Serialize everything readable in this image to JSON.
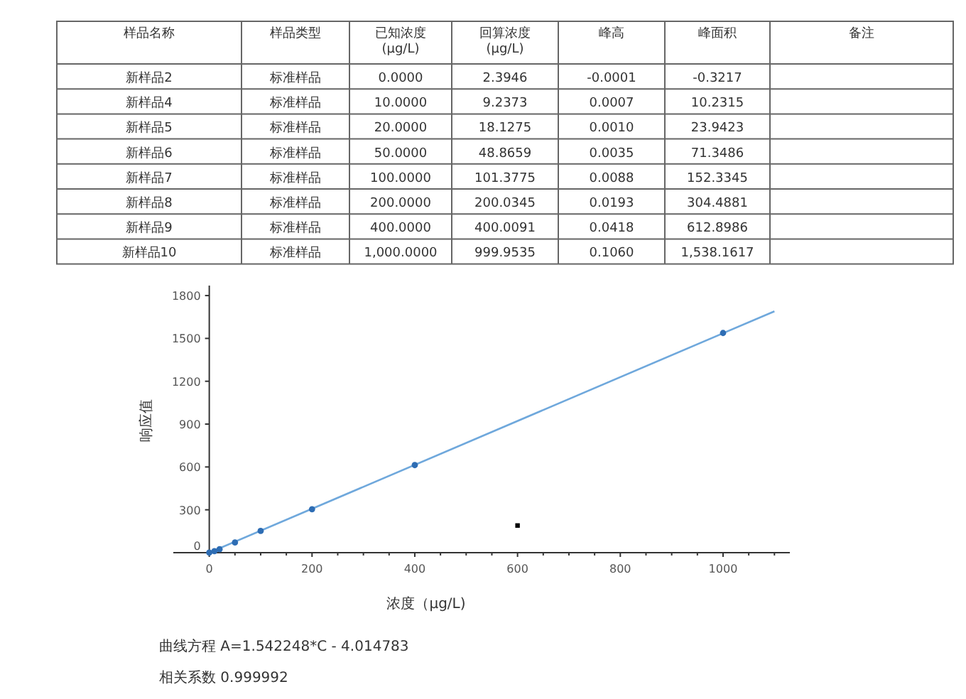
{
  "chart_data": [
    {
      "type": "other",
      "categories": [
        "样品名称",
        "样品类型",
        "已知浓度\n(μg/L)",
        "回算浓度\n(μg/L)",
        "峰高",
        "峰面积",
        "备注"
      ],
      "annotations": [
        "新样品2",
        "标准样品",
        "0.0000",
        "2.3946",
        "-0.0001",
        "-0.3217",
        null,
        "新样品4",
        "标准样品",
        "10.0000",
        "9.2373",
        "0.0007",
        "10.2315",
        null,
        "新样品5",
        "标准样品",
        "20.0000",
        "18.1275",
        "0.0010",
        "23.9423",
        null,
        "新样品6",
        "标准样品",
        "50.0000",
        "48.8659",
        "0.0035",
        "71.3486",
        null,
        "新样品7",
        "标准样品",
        "100.0000",
        "101.3775",
        "0.0088",
        "152.3345",
        null,
        "新样品8",
        "标准样品",
        "200.0000",
        "200.0345",
        "0.0193",
        "304.4881",
        null,
        "新样品9",
        "标准样品",
        "400.0000",
        "400.0091",
        "0.0418",
        "612.8986",
        null,
        "新样品10",
        "标准样品",
        "1,000.0000",
        "999.9535",
        "0.1060",
        "1,538.1617",
        null
      ]
    },
    {
      "type": "scatter",
      "xlabel": "浓度（μg/L)",
      "ylabel": "响应值",
      "xlim": [
        -70,
        1130
      ],
      "ylim": [
        -20,
        1870
      ],
      "xticks": [
        0,
        {
          "value": 50,
          "label": null
        },
        {
          "value": 100,
          "label": null
        },
        {
          "value": 150,
          "label": null
        },
        200,
        {
          "value": 250,
          "label": null
        },
        {
          "value": 300,
          "label": null
        },
        {
          "value": 350,
          "label": null
        },
        400,
        {
          "value": 450,
          "label": null
        },
        {
          "value": 500,
          "label": null
        },
        {
          "value": 550,
          "label": null
        },
        600,
        {
          "value": 650,
          "label": null
        },
        {
          "value": 700,
          "label": null
        },
        {
          "value": 750,
          "label": null
        },
        800,
        {
          "value": 850,
          "label": null
        },
        {
          "value": 900,
          "label": null
        },
        {
          "value": 950,
          "label": null
        },
        1000,
        {
          "value": 1050,
          "label": null
        },
        {
          "value": 1100,
          "label": null
        }
      ],
      "yticks": [
        0,
        300,
        600,
        900,
        1200,
        1500,
        1800
      ],
      "grid": false,
      "marker": "circle",
      "series": [
        {
          "type": "line",
          "color": "#6fa8dc",
          "x": [
            0,
            1100
          ],
          "values": [
            0,
            1690
          ],
          "marker": "none",
          "line_style": "solid"
        },
        {
          "type": "scatter",
          "color": "#2e6db4",
          "x": [
            0,
            10,
            20,
            50,
            100,
            200,
            400,
            1000
          ],
          "values": [
            0,
            10,
            24,
            71,
            152,
            304,
            613,
            1538
          ]
        },
        {
          "type": "scatter",
          "color": "#000000",
          "x": [
            600
          ],
          "values": [
            190
          ],
          "marker": "square"
        }
      ],
      "annotations": [
        "曲线方程  A=1.542248*C - 4.014783",
        "相关系数  0.999992"
      ]
    }
  ]
}
